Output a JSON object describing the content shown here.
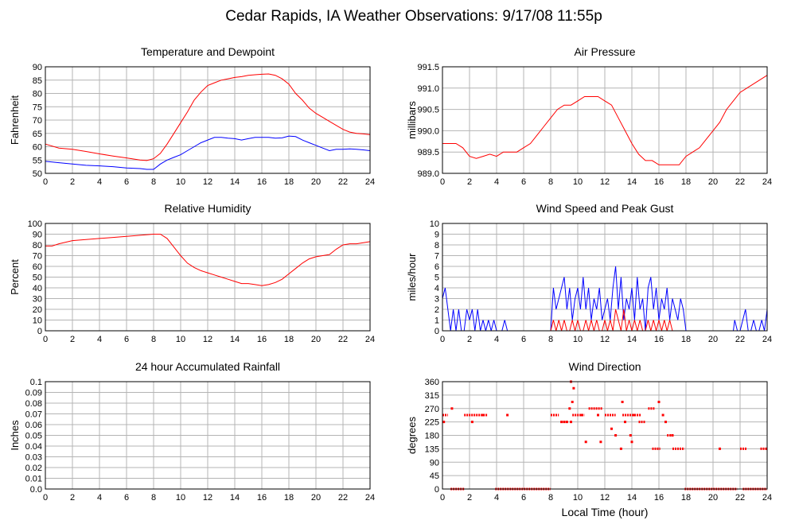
{
  "page_title": "Cedar Rapids, IA Weather Observations: 9/17/08 11:55p",
  "x_axis_label": "Local Time (hour)",
  "colors": {
    "red": "#ff0000",
    "blue": "#0000ff",
    "grid": "#b4b4b4"
  },
  "chart_data": [
    {
      "id": "temp",
      "type": "line",
      "title": "Temperature and Dewpoint",
      "ylabel": "Fahrenheit",
      "xlim": [
        0,
        24
      ],
      "ylim": [
        50,
        90
      ],
      "x_ticks": [
        "0",
        "2",
        "4",
        "6",
        "8",
        "10",
        "12",
        "14",
        "16",
        "18",
        "20",
        "22",
        "24"
      ],
      "y_ticks": [
        "50",
        "55",
        "60",
        "65",
        "70",
        "75",
        "80",
        "85",
        "90"
      ],
      "grid": true,
      "series": [
        {
          "color": "#ff0000",
          "x": [
            0,
            1,
            2,
            3,
            4,
            5,
            6,
            7,
            7.5,
            8,
            8.5,
            9,
            9.5,
            10,
            10.5,
            11,
            11.5,
            12,
            12.5,
            13,
            13.5,
            14,
            14.5,
            15,
            15.5,
            16,
            16.5,
            17,
            17.5,
            18,
            18.5,
            19,
            19.5,
            20,
            20.5,
            21,
            21.5,
            22,
            22.5,
            23,
            23.5,
            24
          ],
          "y": [
            61,
            59.5,
            59,
            58.2,
            57.3,
            56.5,
            55.8,
            55,
            54.8,
            55.5,
            57.5,
            61,
            65,
            69,
            73,
            77.5,
            80.5,
            83,
            84,
            85,
            85.5,
            86,
            86.3,
            86.8,
            87,
            87.2,
            87.3,
            86.8,
            85.5,
            83.5,
            80,
            77.5,
            74.5,
            72.5,
            71,
            69.5,
            68,
            66.5,
            65.5,
            65,
            64.8,
            64.5
          ]
        },
        {
          "color": "#0000ff",
          "x": [
            0,
            1,
            2,
            3,
            4,
            5,
            6,
            7,
            7.5,
            8,
            8.5,
            9,
            9.5,
            10,
            10.5,
            11,
            11.5,
            12,
            12.5,
            13,
            13.5,
            14,
            14.5,
            15,
            15.5,
            16,
            16.5,
            17,
            17.5,
            18,
            18.5,
            19,
            19.5,
            20,
            20.5,
            21,
            21.5,
            22,
            22.5,
            23,
            23.5,
            24
          ],
          "y": [
            54.5,
            54,
            53.5,
            53,
            52.8,
            52.5,
            52,
            51.8,
            51.5,
            51.5,
            53.5,
            55,
            56,
            57,
            58.5,
            60,
            61.5,
            62.5,
            63.5,
            63.5,
            63.2,
            63,
            62.5,
            63,
            63.5,
            63.5,
            63.5,
            63.2,
            63.3,
            64,
            63.8,
            62.5,
            61.5,
            60.5,
            59.5,
            58.5,
            59,
            59,
            59.2,
            59,
            58.8,
            58.5
          ]
        }
      ]
    },
    {
      "id": "pressure",
      "type": "line",
      "title": "Air Pressure",
      "ylabel": "millibars",
      "xlim": [
        0,
        24
      ],
      "ylim": [
        989.0,
        991.5
      ],
      "x_ticks": [
        "0",
        "2",
        "4",
        "6",
        "8",
        "10",
        "12",
        "14",
        "16",
        "18",
        "20",
        "22",
        "24"
      ],
      "y_ticks": [
        "989.0",
        "989.5",
        "990.0",
        "990.5",
        "991.0",
        "991.5"
      ],
      "grid": true,
      "series": [
        {
          "color": "#ff0000",
          "x": [
            0,
            1,
            1.5,
            2,
            2.5,
            3,
            3.5,
            4,
            4.5,
            5,
            5.5,
            6,
            6.5,
            7,
            7.5,
            8,
            8.5,
            9,
            9.5,
            10,
            10.5,
            11,
            11.5,
            12,
            12.5,
            13,
            13.5,
            14,
            14.5,
            15,
            15.5,
            16,
            16.5,
            17,
            17.5,
            18,
            18.5,
            19,
            19.5,
            20,
            20.5,
            21,
            21.5,
            22,
            22.5,
            23,
            23.5,
            24
          ],
          "y": [
            989.7,
            989.7,
            989.6,
            989.4,
            989.35,
            989.4,
            989.45,
            989.4,
            989.5,
            989.5,
            989.5,
            989.6,
            989.7,
            989.9,
            990.1,
            990.3,
            990.5,
            990.6,
            990.6,
            990.7,
            990.8,
            990.8,
            990.8,
            990.7,
            990.6,
            990.3,
            990.0,
            989.7,
            989.45,
            989.3,
            989.3,
            989.2,
            989.2,
            989.2,
            989.2,
            989.4,
            989.5,
            989.6,
            989.8,
            990.0,
            990.2,
            990.5,
            990.7,
            990.9,
            991.0,
            991.1,
            991.2,
            991.3
          ]
        }
      ]
    },
    {
      "id": "humidity",
      "type": "line",
      "title": "Relative Humidity",
      "ylabel": "Percent",
      "xlim": [
        0,
        24
      ],
      "ylim": [
        0,
        100
      ],
      "x_ticks": [
        "0",
        "2",
        "4",
        "6",
        "8",
        "10",
        "12",
        "14",
        "16",
        "18",
        "20",
        "22",
        "24"
      ],
      "y_ticks": [
        "0",
        "10",
        "20",
        "30",
        "40",
        "50",
        "60",
        "70",
        "80",
        "90",
        "100"
      ],
      "grid": true,
      "series": [
        {
          "color": "#ff0000",
          "x": [
            0,
            0.5,
            1,
            2,
            3,
            4,
            5,
            6,
            7,
            8,
            8.5,
            9,
            9.5,
            10,
            10.5,
            11,
            11.5,
            12,
            12.5,
            13,
            13.5,
            14,
            14.5,
            15,
            15.5,
            16,
            16.5,
            17,
            17.5,
            18,
            18.5,
            19,
            19.5,
            20,
            20.5,
            21,
            21.5,
            22,
            22.5,
            23,
            23.5,
            24
          ],
          "y": [
            79,
            79,
            81,
            84,
            85,
            86,
            87,
            88,
            89,
            90,
            90,
            86,
            78,
            70,
            63,
            59,
            56,
            54,
            52,
            50,
            48,
            46,
            44,
            44,
            43,
            42,
            43,
            45,
            48,
            53,
            58,
            63,
            67,
            69,
            70,
            71,
            76,
            80,
            81,
            81,
            82,
            83
          ]
        }
      ]
    },
    {
      "id": "wind",
      "type": "line",
      "title": "Wind Speed and Peak Gust",
      "ylabel": "miles/hour",
      "xlim": [
        0,
        24
      ],
      "ylim": [
        0,
        10
      ],
      "x_ticks": [
        "0",
        "2",
        "4",
        "6",
        "8",
        "10",
        "12",
        "14",
        "16",
        "18",
        "20",
        "22",
        "24"
      ],
      "y_ticks": [
        "0",
        "1",
        "2",
        "3",
        "4",
        "5",
        "6",
        "7",
        "8",
        "9",
        "10"
      ],
      "grid": true,
      "series": [
        {
          "color": "#0000ff",
          "x": [
            0,
            0.2,
            0.4,
            0.6,
            0.8,
            1.0,
            1.2,
            1.4,
            1.6,
            1.8,
            2.0,
            2.2,
            2.4,
            2.6,
            2.8,
            3.0,
            3.2,
            3.4,
            3.6,
            3.8,
            4.0,
            4.4,
            4.6,
            4.8,
            5.0,
            6.0,
            7.0,
            8.0,
            8.2,
            8.4,
            8.6,
            8.8,
            9.0,
            9.2,
            9.4,
            9.6,
            9.8,
            10.0,
            10.2,
            10.4,
            10.6,
            10.8,
            11.0,
            11.2,
            11.4,
            11.6,
            11.8,
            12.0,
            12.2,
            12.4,
            12.6,
            12.8,
            13.0,
            13.2,
            13.4,
            13.6,
            13.8,
            14.0,
            14.2,
            14.4,
            14.6,
            14.8,
            15.0,
            15.2,
            15.4,
            15.6,
            15.8,
            16.0,
            16.2,
            16.4,
            16.6,
            16.8,
            17.0,
            17.2,
            17.4,
            17.6,
            17.8,
            18.0,
            19.0,
            20.0,
            21.0,
            21.5,
            21.6,
            21.8,
            22.0,
            22.2,
            22.4,
            22.6,
            22.8,
            23.0,
            23.2,
            23.4,
            23.6,
            23.8,
            24.0
          ],
          "y": [
            3,
            4,
            2,
            0,
            2,
            0,
            2,
            0,
            0,
            2,
            1,
            2,
            0,
            2,
            0,
            1,
            0,
            1,
            0,
            1,
            0,
            0,
            1,
            0,
            0,
            0,
            0,
            0,
            4,
            2,
            3,
            4,
            5,
            2,
            4,
            1,
            3,
            4,
            2,
            5,
            2,
            4,
            1,
            3,
            2,
            4,
            1,
            2,
            3,
            1,
            4,
            6,
            2,
            5,
            1,
            3,
            2,
            4,
            1,
            5,
            2,
            3,
            0,
            4,
            5,
            2,
            4,
            1,
            3,
            2,
            4,
            1,
            3,
            2,
            1,
            3,
            2,
            0,
            0,
            0,
            0,
            0,
            1,
            0,
            0,
            1,
            2,
            0,
            0,
            1,
            0,
            0,
            1,
            0,
            2
          ]
        },
        {
          "color": "#ff0000",
          "x": [
            0,
            8.0,
            8.2,
            8.4,
            8.6,
            8.8,
            9.0,
            9.2,
            9.4,
            9.6,
            9.8,
            10.0,
            10.2,
            10.4,
            10.6,
            10.8,
            11.0,
            11.2,
            11.4,
            11.6,
            11.8,
            12.0,
            12.2,
            12.4,
            12.6,
            12.8,
            13.0,
            13.2,
            13.4,
            13.6,
            13.8,
            14.0,
            14.2,
            14.4,
            14.6,
            14.8,
            15.0,
            15.2,
            15.4,
            15.6,
            15.8,
            16.0,
            16.2,
            16.4,
            16.6,
            16.8,
            17.0,
            17.4,
            18.0,
            24.0
          ],
          "y": [
            0,
            0,
            1,
            0,
            1,
            0,
            1,
            0,
            0,
            1,
            0,
            1,
            0,
            0,
            1,
            0,
            1,
            0,
            1,
            0,
            0,
            1,
            0,
            1,
            0,
            2,
            1,
            0,
            2,
            0,
            1,
            0,
            1,
            0,
            1,
            0,
            0,
            1,
            0,
            1,
            0,
            1,
            0,
            1,
            0,
            1,
            0,
            0,
            0,
            0
          ]
        }
      ]
    },
    {
      "id": "rain",
      "type": "line",
      "title": "24 hour Accumulated Rainfall",
      "ylabel": "Inches",
      "xlim": [
        0,
        24
      ],
      "ylim": [
        0,
        0.1
      ],
      "x_ticks": [
        "0",
        "2",
        "4",
        "6",
        "8",
        "10",
        "12",
        "14",
        "16",
        "18",
        "20",
        "22",
        "24"
      ],
      "y_ticks": [
        "0.0",
        "0.01",
        "0.02",
        "0.03",
        "0.04",
        "0.05",
        "0.06",
        "0.07",
        "0.08",
        "0.09",
        "0.1"
      ],
      "grid": true,
      "series": [
        {
          "color": "#ff0000",
          "x": [
            0,
            24
          ],
          "y": [
            0,
            0
          ]
        }
      ]
    },
    {
      "id": "direction",
      "type": "scatter",
      "title": "Wind Direction",
      "ylabel": "degrees",
      "xlim": [
        0,
        24
      ],
      "ylim": [
        0,
        360
      ],
      "x_ticks": [
        "0",
        "2",
        "4",
        "6",
        "8",
        "10",
        "12",
        "14",
        "16",
        "18",
        "20",
        "22",
        "24"
      ],
      "y_ticks": [
        "0",
        "45",
        "90",
        "135",
        "180",
        "225",
        "270",
        "315",
        "360"
      ],
      "grid": true,
      "series": [
        {
          "color": "#ff0000",
          "segments": [
            [
              0.0,
              0.4,
              248
            ],
            [
              0.6,
              1.6,
              0
            ],
            [
              1.6,
              3.3,
              248
            ],
            [
              3.9,
              8.0,
              0
            ],
            [
              8.0,
              8.6,
              248
            ],
            [
              9.6,
              10.5,
              248
            ],
            [
              10.8,
              11.8,
              270
            ],
            [
              12.0,
              12.8,
              248
            ],
            [
              13.3,
              14.7,
              248
            ],
            [
              14.5,
              15.0,
              225
            ],
            [
              15.2,
              15.7,
              270
            ],
            [
              15.5,
              16.1,
              135
            ],
            [
              16.6,
              17.0,
              180
            ],
            [
              17.0,
              17.9,
              135
            ],
            [
              17.9,
              21.8,
              0
            ],
            [
              22.0,
              22.5,
              135
            ],
            [
              22.2,
              24.0,
              0
            ],
            [
              23.5,
              24.0,
              135
            ]
          ],
          "x": [
            0.1,
            0.7,
            2.2,
            4.8,
            8.8,
            9.0,
            9.2,
            9.4,
            9.5,
            9.5,
            9.6,
            9.7,
            10.3,
            10.6,
            11.5,
            11.7,
            12.5,
            12.8,
            13.2,
            13.3,
            13.5,
            13.9,
            14.0,
            14.2,
            16.0,
            16.3,
            16.5,
            17.0,
            20.5,
            3.0
          ],
          "y": [
            225,
            270,
            225,
            248,
            225,
            225,
            225,
            270,
            360,
            225,
            292,
            338,
            248,
            158,
            248,
            158,
            202,
            180,
            135,
            292,
            225,
            180,
            158,
            248,
            292,
            248,
            225,
            180,
            135,
            248
          ]
        }
      ]
    }
  ]
}
